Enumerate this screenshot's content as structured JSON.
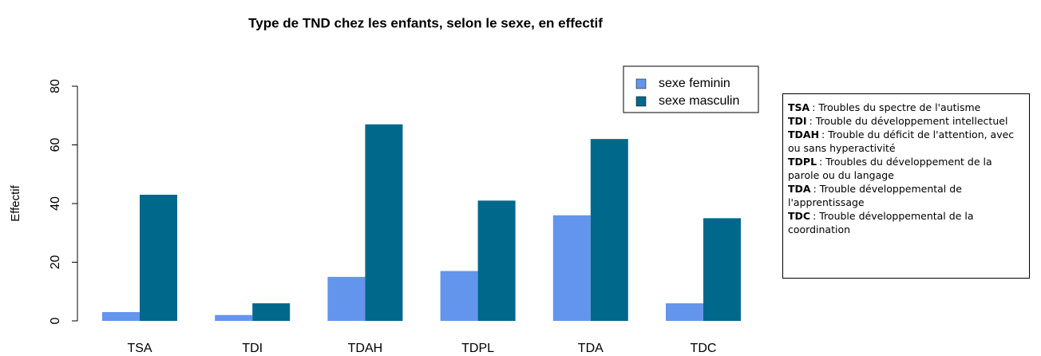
{
  "chart_data": {
    "type": "bar",
    "title": "Type de TND chez les enfants, selon le sexe, en effectif",
    "y_label": "Effectif",
    "categories": [
      "TSA",
      "TDI",
      "TDAH",
      "TDPL",
      "TDA",
      "TDC"
    ],
    "series": [
      {
        "name": "sexe feminin",
        "color": "#6495ed",
        "values": [
          3,
          2,
          15,
          17,
          36,
          6
        ]
      },
      {
        "name": "sexe masculin",
        "color": "#00688b",
        "values": [
          43,
          6,
          67,
          41,
          62,
          35
        ]
      }
    ],
    "ylim": [
      0,
      80
    ],
    "yticks": [
      0,
      20,
      40,
      60,
      80
    ],
    "grid": false,
    "legend": "top-right"
  },
  "note": [
    {
      "term": "TSA",
      "text": ": Troubles du spectre de l'autisme"
    },
    {
      "term": "TDI",
      "text": ": Trouble du développement intellectuel"
    },
    {
      "term": "TDAH",
      "text": ": Trouble du déficit de l'attention, avec ou sans hyperactivité"
    },
    {
      "term": "TDPL",
      "text": ": Troubles du développement de la parole ou du langage"
    },
    {
      "term": "TDA",
      "text": ": Trouble développemental de l'apprentissage"
    },
    {
      "term": "TDC",
      "text": ": Trouble développemental de la coordination"
    }
  ]
}
